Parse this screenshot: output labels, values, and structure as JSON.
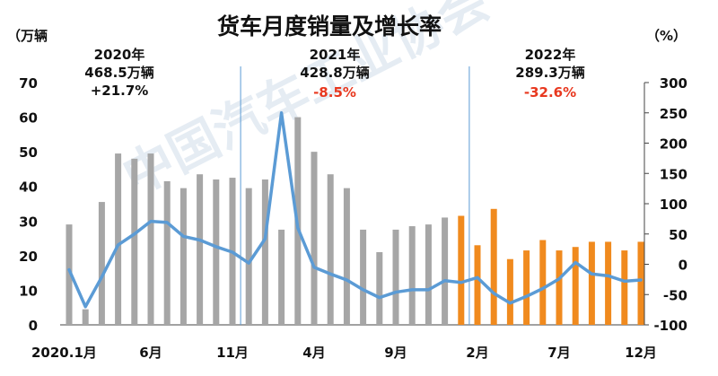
{
  "chart_data": {
    "type": "bar",
    "title": "货车月度销量及增长率",
    "left_unit": "（万辆",
    "right_unit": "（%）",
    "y_left": {
      "min": 0,
      "max": 70,
      "ticks": [
        "0",
        "10",
        "20",
        "30",
        "40",
        "50",
        "60",
        "70"
      ]
    },
    "y_right": {
      "min": -100,
      "max": 300,
      "ticks": [
        "-100",
        "-50",
        "0",
        "50",
        "100",
        "150",
        "200",
        "250",
        "300"
      ]
    },
    "x_tick_labels": [
      {
        "index": 0,
        "label": "2020.1月"
      },
      {
        "index": 5,
        "label": "6月"
      },
      {
        "index": 10,
        "label": "11月"
      },
      {
        "index": 15,
        "label": "4月"
      },
      {
        "index": 20,
        "label": "9月"
      },
      {
        "index": 25,
        "label": "2月"
      },
      {
        "index": 30,
        "label": "7月"
      },
      {
        "index": 35,
        "label": "12月"
      }
    ],
    "annotations": [
      {
        "year": "2020年",
        "volume": "468.5万辆",
        "growth": "+21.7%",
        "growth_color": "#111111"
      },
      {
        "year": "2021年",
        "volume": "428.8万辆",
        "growth": "-8.5%",
        "growth_color": "#e8381f"
      },
      {
        "year": "2022年",
        "volume": "289.3万辆",
        "growth": "-32.6%",
        "growth_color": "#e8381f"
      }
    ],
    "dividers_after_index": [
      10,
      24
    ],
    "bar_values": [
      29,
      4.5,
      35.5,
      49.5,
      48,
      49.5,
      41.5,
      39.5,
      43.5,
      42,
      42.5,
      39.5,
      42,
      27.5,
      60,
      50,
      43.5,
      39.5,
      27.5,
      21,
      27.5,
      28.5,
      29,
      31,
      31.5,
      23,
      33.5,
      19,
      21.5,
      24.5,
      21.5,
      22.5,
      24,
      24,
      21.5,
      24
    ],
    "bar_colors": {
      "2020-2021": "#a6a6a6",
      "2022": "#f08a1e"
    },
    "growth_rate": [
      -9,
      -70,
      -21,
      32,
      50,
      71,
      69,
      46,
      40,
      29,
      20,
      2,
      42,
      250,
      60,
      -5,
      -16,
      -26,
      -42,
      -55,
      -46,
      -42,
      -42,
      -27,
      -30,
      -22,
      -48,
      -64,
      -53,
      -40,
      -24,
      3,
      -16,
      -19,
      -28,
      -26
    ],
    "line_color": "#5b9bd5",
    "watermark": "中国汽车工业协会"
  }
}
